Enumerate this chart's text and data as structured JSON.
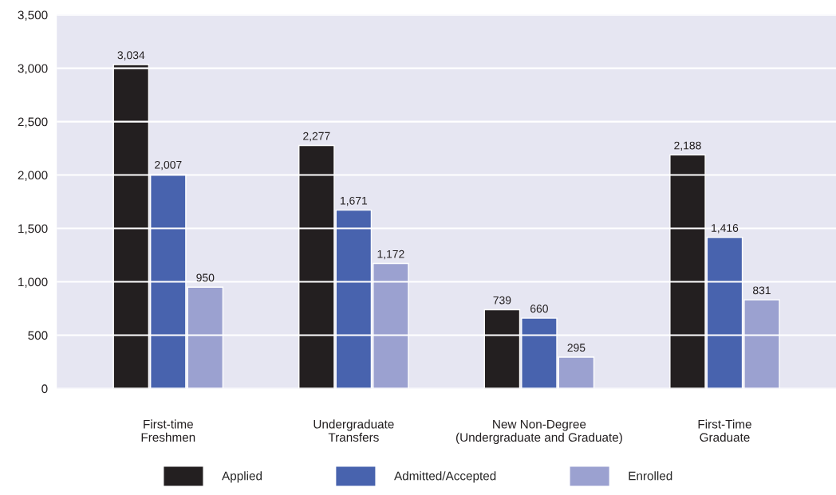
{
  "chart_data": {
    "type": "bar",
    "categories": [
      "First-time\nFreshmen",
      "Undergraduate\nTransfers",
      "New Non-Degree\n(Undergraduate and Graduate)",
      "First-Time\nGraduate"
    ],
    "series": [
      {
        "name": "Applied",
        "color": "#231f20",
        "values": [
          3034,
          2277,
          739,
          2188
        ]
      },
      {
        "name": "Admitted/Accepted",
        "color": "#4863ae",
        "values": [
          2007,
          1671,
          660,
          1416
        ]
      },
      {
        "name": "Enrolled",
        "color": "#9ba1d0",
        "values": [
          950,
          1172,
          295,
          831
        ]
      }
    ],
    "ylim": [
      0,
      3500
    ],
    "yticks": [
      {
        "value": 0,
        "label": "0"
      },
      {
        "value": 500,
        "label": "500"
      },
      {
        "value": 1000,
        "label": "1,000"
      },
      {
        "value": 1500,
        "label": "1,500"
      },
      {
        "value": 2000,
        "label": "2,000"
      },
      {
        "value": 2500,
        "label": "2,500"
      },
      {
        "value": 3000,
        "label": "3,000"
      },
      {
        "value": 3500,
        "label": "3,500"
      }
    ],
    "value_labels": [
      [
        "3,034",
        "2,277",
        "739",
        "2,188"
      ],
      [
        "2,007",
        "1,671",
        "660",
        "1,416"
      ],
      [
        "950",
        "1,172",
        "295",
        "831"
      ]
    ],
    "grid": "y",
    "legend": "bottom"
  }
}
